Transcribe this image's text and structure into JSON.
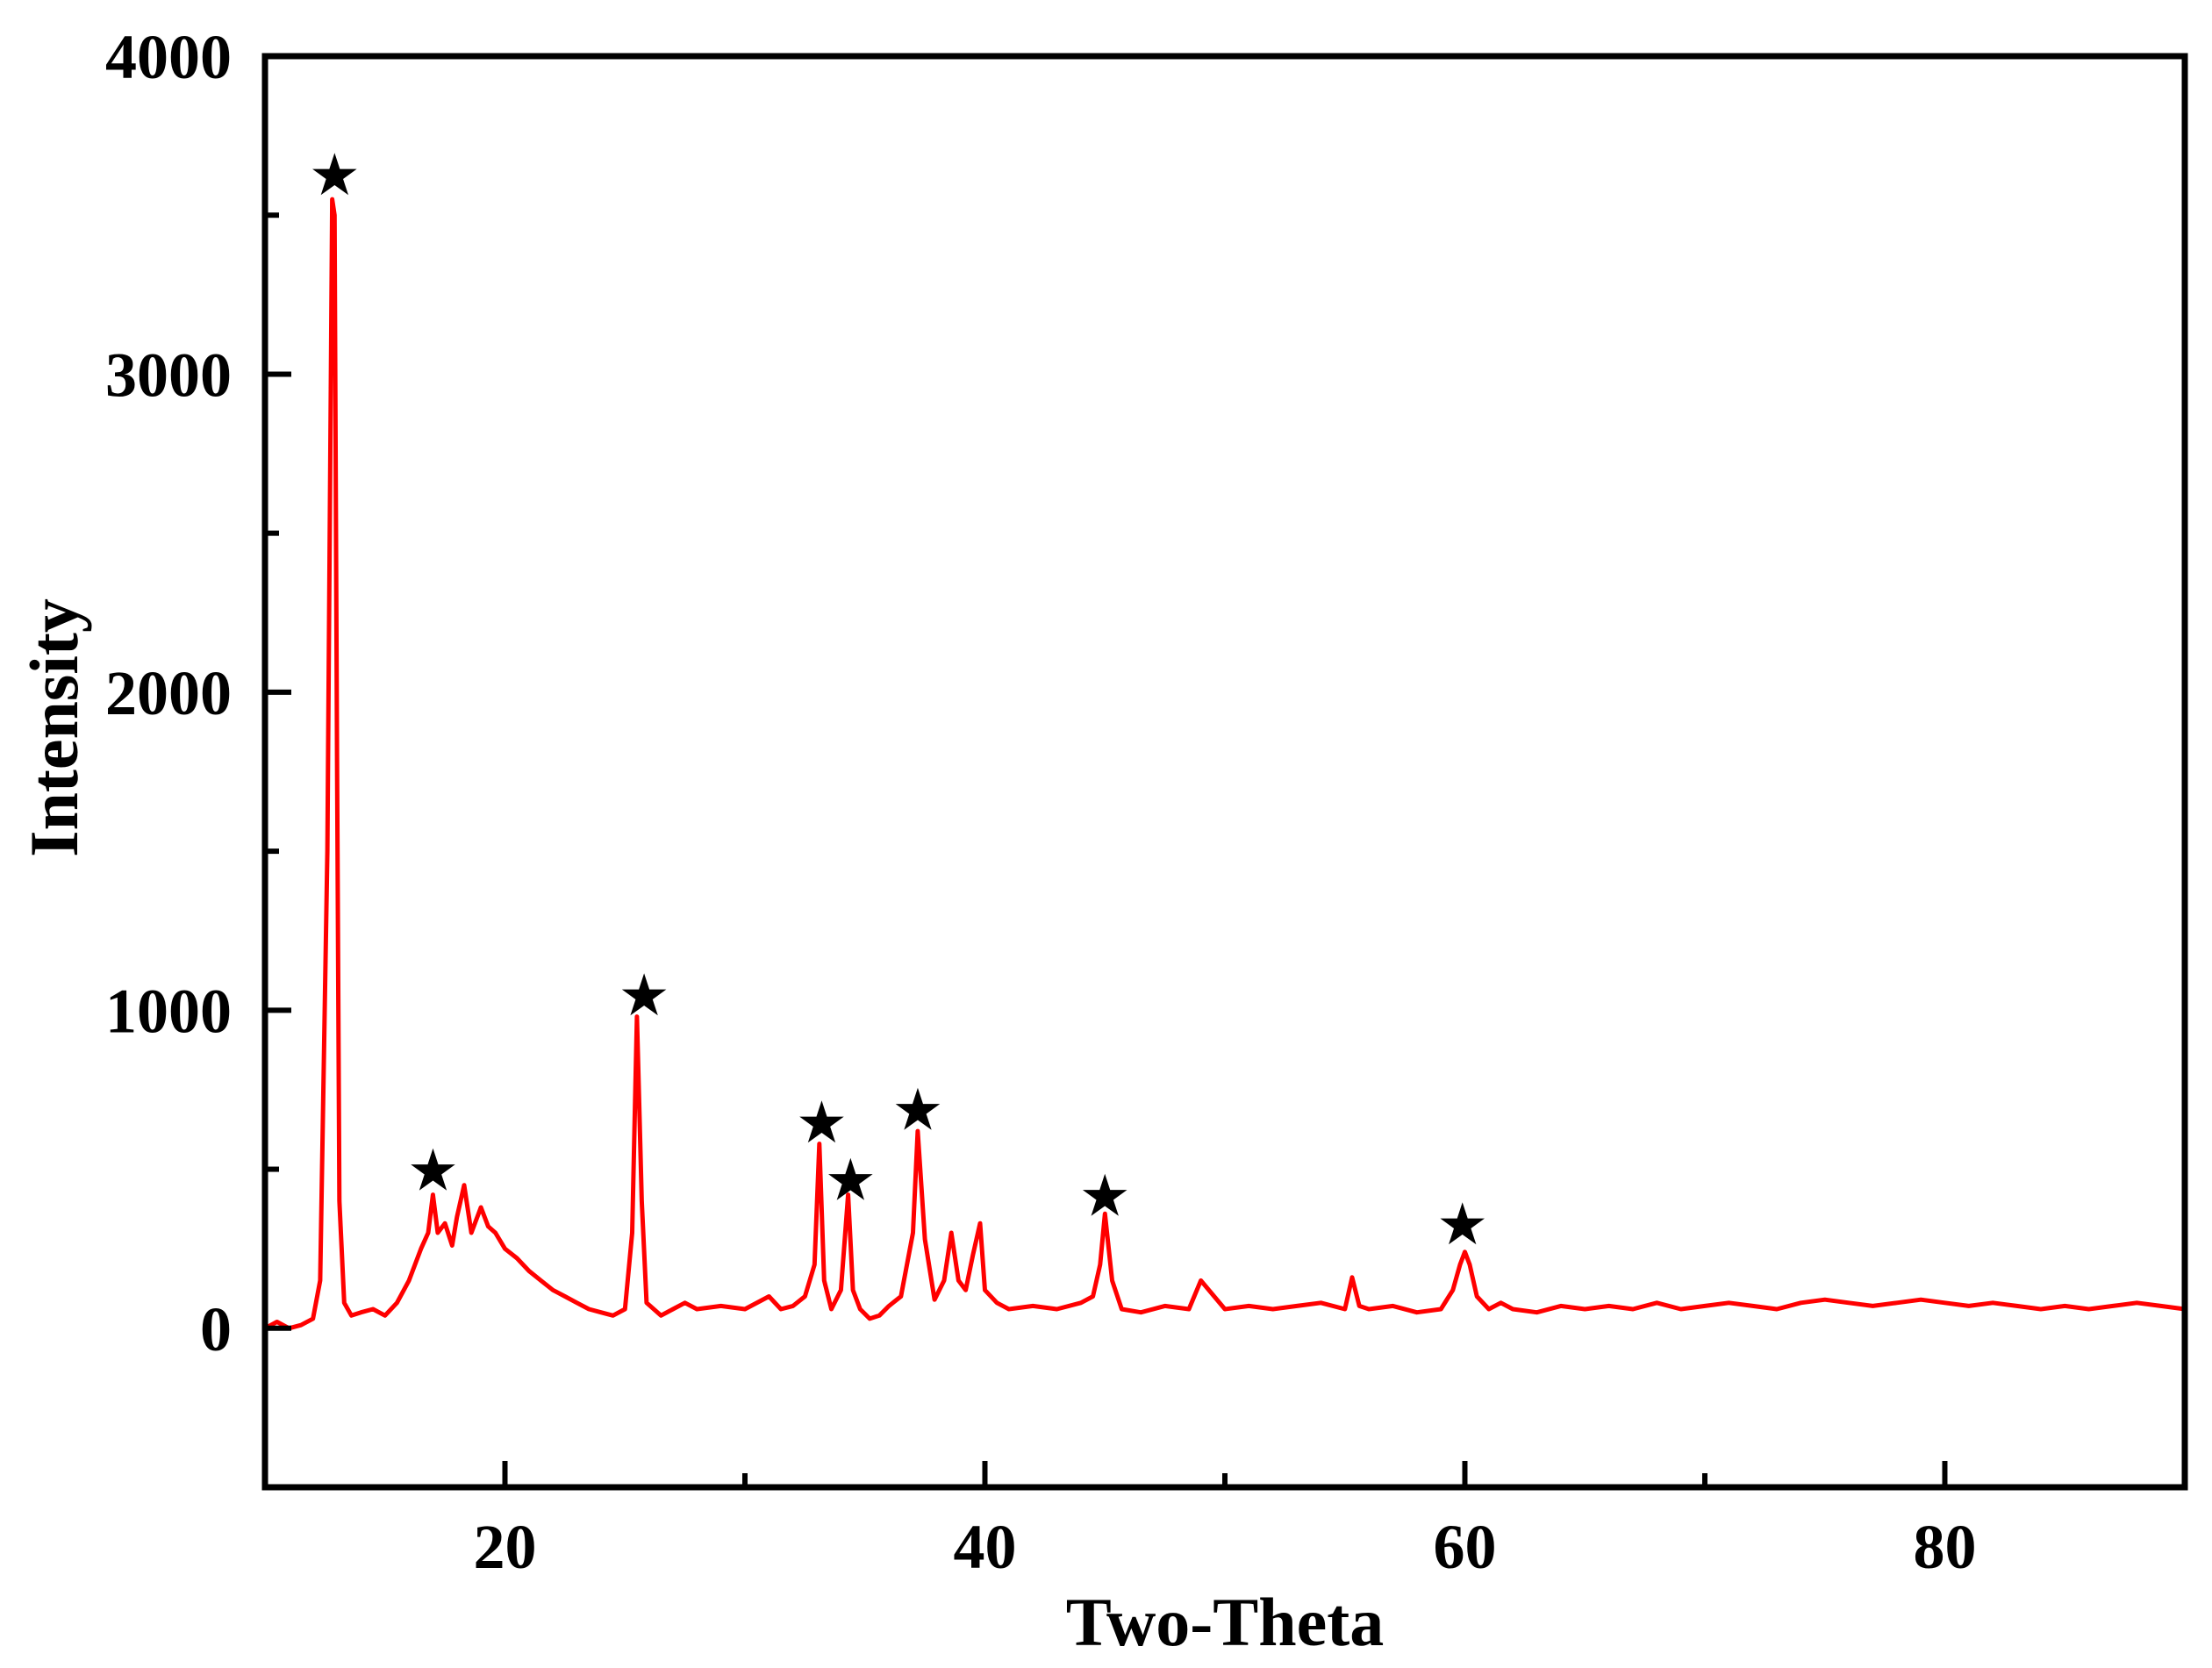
{
  "chart_data": {
    "type": "line",
    "title": "",
    "xlabel": "Two-Theta",
    "ylabel": "Intensity",
    "xlim": [
      10,
      90
    ],
    "ylim": [
      -500,
      4000
    ],
    "x_ticks": [
      20,
      40,
      60,
      80
    ],
    "x_minor_ticks": [
      30,
      50,
      70
    ],
    "y_ticks": [
      0,
      1000,
      2000,
      3000,
      4000
    ],
    "y_minor_ticks": [
      500,
      1500,
      2500,
      3500
    ],
    "grid": false,
    "legend": "none",
    "series": [
      {
        "color": "#ff0000",
        "x": [
          10.0,
          10.5,
          11.0,
          11.5,
          12.0,
          12.3,
          12.6,
          12.8,
          12.9,
          13.0,
          13.1,
          13.3,
          13.6,
          14.0,
          14.5,
          15.0,
          15.5,
          16.0,
          16.5,
          16.8,
          17.0,
          17.2,
          17.5,
          17.8,
          18.0,
          18.3,
          18.6,
          19.0,
          19.3,
          19.6,
          20.0,
          20.5,
          21.0,
          21.5,
          22.0,
          22.5,
          23.0,
          23.5,
          24.0,
          24.5,
          25.0,
          25.3,
          25.5,
          25.7,
          25.9,
          26.2,
          26.5,
          27.0,
          27.5,
          28.0,
          29.0,
          30.0,
          31.0,
          31.5,
          32.0,
          32.5,
          32.9,
          33.1,
          33.3,
          33.6,
          34.0,
          34.3,
          34.5,
          34.8,
          35.2,
          35.6,
          36.0,
          36.5,
          37.0,
          37.2,
          37.5,
          37.9,
          38.3,
          38.6,
          38.9,
          39.2,
          39.5,
          39.8,
          40.0,
          40.5,
          41.0,
          42.0,
          43.0,
          44.0,
          44.5,
          44.8,
          45.0,
          45.3,
          45.7,
          46.5,
          47.5,
          48.5,
          49.0,
          50.0,
          51.0,
          52.0,
          53.0,
          54.0,
          55.0,
          55.3,
          55.6,
          56.0,
          57.0,
          58.0,
          59.0,
          59.5,
          59.8,
          60.0,
          60.2,
          60.5,
          61.0,
          61.5,
          62.0,
          63.0,
          64.0,
          65.0,
          66.0,
          67.0,
          68.0,
          69.0,
          70.0,
          71.0,
          72.0,
          73.0,
          74.0,
          75.0,
          76.0,
          77.0,
          78.0,
          79.0,
          80.0,
          81.0,
          82.0,
          83.0,
          84.0,
          85.0,
          86.0,
          87.0,
          88.0,
          89.0,
          90.0
        ],
        "y": [
          0,
          20,
          0,
          10,
          30,
          150,
          1500,
          3550,
          3500,
          1800,
          400,
          80,
          40,
          50,
          60,
          40,
          80,
          150,
          250,
          300,
          420,
          300,
          330,
          260,
          350,
          450,
          300,
          380,
          320,
          300,
          250,
          220,
          180,
          150,
          120,
          100,
          80,
          60,
          50,
          40,
          60,
          300,
          980,
          400,
          80,
          60,
          40,
          60,
          80,
          60,
          70,
          60,
          100,
          60,
          70,
          100,
          200,
          580,
          150,
          60,
          120,
          420,
          120,
          60,
          30,
          40,
          70,
          100,
          300,
          620,
          280,
          90,
          150,
          300,
          150,
          120,
          230,
          330,
          120,
          80,
          60,
          70,
          60,
          80,
          100,
          200,
          360,
          150,
          60,
          50,
          70,
          60,
          150,
          60,
          70,
          60,
          70,
          80,
          60,
          160,
          70,
          60,
          70,
          50,
          60,
          120,
          200,
          240,
          200,
          100,
          60,
          80,
          60,
          50,
          70,
          60,
          70,
          60,
          80,
          60,
          70,
          80,
          70,
          60,
          80,
          90,
          80,
          70,
          80,
          90,
          80,
          70,
          80,
          70,
          60,
          70,
          60,
          70,
          80,
          70,
          60
        ]
      }
    ],
    "annotations": [
      {
        "symbol": "★",
        "x": 12.9,
        "y": 3630
      },
      {
        "symbol": "★",
        "x": 17.0,
        "y": 500
      },
      {
        "symbol": "★",
        "x": 25.8,
        "y": 1050
      },
      {
        "symbol": "★",
        "x": 33.2,
        "y": 650
      },
      {
        "symbol": "★",
        "x": 34.4,
        "y": 470
      },
      {
        "symbol": "★",
        "x": 37.2,
        "y": 690
      },
      {
        "symbol": "★",
        "x": 45.0,
        "y": 420
      },
      {
        "symbol": "★",
        "x": 59.9,
        "y": 330
      }
    ]
  }
}
